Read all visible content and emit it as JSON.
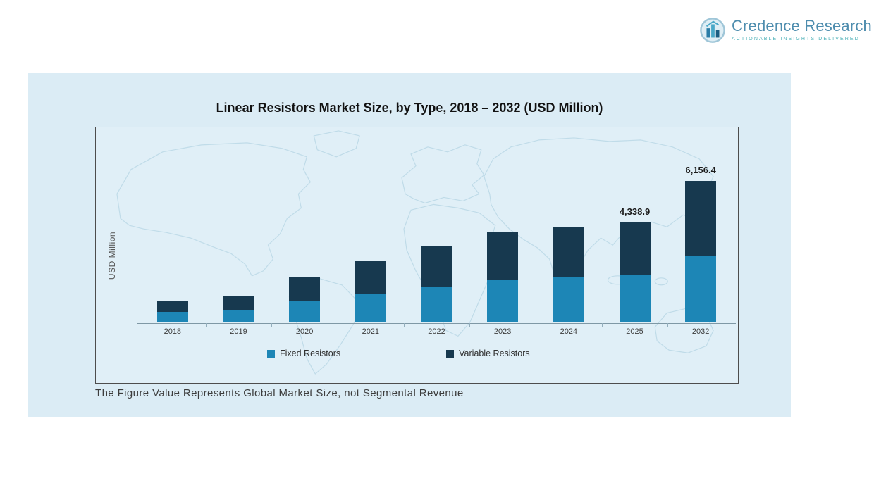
{
  "logo": {
    "name": "Credence Research",
    "tagline": "Actionable Insights Delivered",
    "icon": "bar-chart-logo-icon",
    "name_color": "#4e8dae",
    "tagline_color": "#4fb2b8"
  },
  "colors": {
    "panel_background": "#dbecf5",
    "chart_background": "#e0eff7",
    "map_outline": "#bcd9e7",
    "fixed_resistors": "#1d86b6",
    "variable_resistors": "#17394f"
  },
  "chart_data": {
    "type": "bar",
    "stacked": true,
    "title": "Linear Resistors Market Size, by Type, 2018 – 2032 (USD Million)",
    "ylabel": "USD Million",
    "xlabel": "",
    "categories": [
      "2018",
      "2019",
      "2020",
      "2021",
      "2022",
      "2023",
      "2024",
      "2025",
      "2032"
    ],
    "series": [
      {
        "name": "Fixed Resistors",
        "color": "#1d86b6",
        "values": [
          430,
          535,
          925,
          1245,
          1545,
          1830,
          1950,
          2040,
          2890
        ]
      },
      {
        "name": "Variable Resistors",
        "color": "#17394f",
        "values": [
          490,
          605,
          1045,
          1405,
          1745,
          2070,
          2200,
          2298.9,
          3266.4
        ]
      }
    ],
    "totals": [
      920,
      1140,
      1970,
      2650,
      3290,
      3900,
      4150,
      4338.9,
      6156.4
    ],
    "data_labels": [
      null,
      null,
      null,
      null,
      null,
      null,
      null,
      "4,338.9",
      "6,156.4"
    ],
    "legend_position": "bottom",
    "grid": false
  },
  "footnote": "The Figure Value Represents Global Market Size, not Segmental Revenue"
}
